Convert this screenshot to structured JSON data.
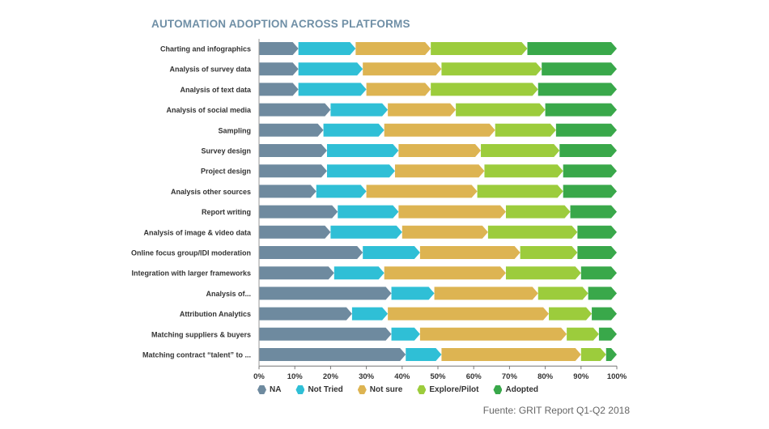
{
  "chart_data": {
    "type": "bar",
    "stacked": true,
    "orientation": "horizontal",
    "title": "AUTOMATION ADOPTION ACROSS PLATFORMS",
    "categories": [
      "Charting and infographics",
      "Analysis of survey data",
      "Analysis of text data",
      "Analysis of social media",
      "Sampling",
      "Survey design",
      "Project design",
      "Analysis other sources",
      "Report writing",
      "Analysis of image & video data",
      "Online focus group/IDI moderation",
      "Integration with larger frameworks",
      "Analysis of...",
      "Attribution Analytics",
      "Matching suppliers & buyers",
      "Matching contract “talent” to ..."
    ],
    "series": [
      {
        "name": "NA",
        "color": "#6e8a9f",
        "values": [
          11,
          11,
          11,
          20,
          18,
          19,
          19,
          16,
          22,
          20,
          29,
          21,
          37,
          26,
          37,
          41
        ]
      },
      {
        "name": "Not Tried",
        "color": "#2fbfd6",
        "values": [
          16,
          18,
          19,
          16,
          17,
          20,
          19,
          14,
          17,
          20,
          16,
          14,
          12,
          10,
          8,
          10
        ]
      },
      {
        "name": "Not sure",
        "color": "#ddb452",
        "values": [
          21,
          22,
          18,
          19,
          31,
          23,
          25,
          31,
          30,
          24,
          28,
          34,
          29,
          45,
          41,
          39
        ]
      },
      {
        "name": "Explore/Pilot",
        "color": "#9ccc3c",
        "values": [
          27,
          28,
          30,
          25,
          17,
          22,
          22,
          24,
          18,
          25,
          16,
          21,
          14,
          12,
          9,
          7
        ]
      },
      {
        "name": "Adopted",
        "color": "#39a84a",
        "values": [
          25,
          21,
          22,
          20,
          17,
          16,
          15,
          15,
          13,
          11,
          11,
          10,
          8,
          7,
          5,
          3
        ]
      }
    ],
    "xaxis": {
      "min": 0,
      "max": 100,
      "ticks": [
        "0%",
        "10%",
        "20%",
        "30%",
        "40%",
        "50%",
        "60%",
        "70%",
        "80%",
        "90%",
        "100%"
      ]
    },
    "legend_position": "bottom-left"
  },
  "source": "Fuente: GRIT Report Q1-Q2 2018"
}
